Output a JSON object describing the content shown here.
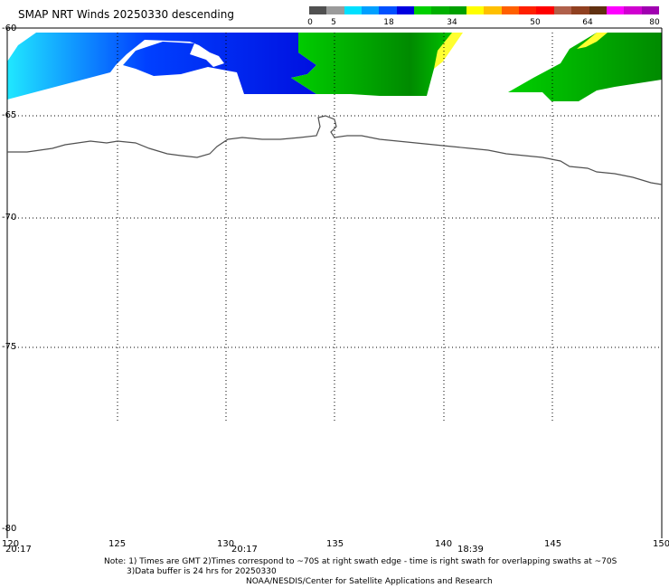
{
  "title": "SMAP NRT Winds  20250330 descending",
  "colorbar": {
    "labels": [
      "0",
      "5",
      "18",
      "34",
      "50",
      "64",
      "80"
    ],
    "colors": [
      "#505050",
      "#9a9a9a",
      "#00e0ff",
      "#00a0ff",
      "#0050ff",
      "#0000e0",
      "#00d000",
      "#00b000",
      "#00a000",
      "#ffff00",
      "#ffc000",
      "#ff6000",
      "#ff2000",
      "#ff0000",
      "#b0604a",
      "#904020",
      "#603010",
      "#ff00ff",
      "#d000d0",
      "#a000b0"
    ]
  },
  "map": {
    "lon_ticks": [
      "120",
      "125",
      "130",
      "135",
      "140",
      "145",
      "150"
    ],
    "lat_ticks": [
      "-60",
      "-65",
      "-70",
      "-75",
      "-80"
    ],
    "grid": true,
    "wind_colors": {
      "cyan": "#20e8ff",
      "blue": "#0040ff",
      "dark_blue": "#0010e0",
      "green": "#00d000",
      "dark_green": "#008a00",
      "yellow": "#ffff30"
    }
  },
  "times": [
    "20:17",
    "20:17",
    "18:39"
  ],
  "notes": {
    "line1": "Note: 1) Times are GMT 2)Times correspond to ~70S at right swath edge - time is right swath for overlapping swaths at ~70S",
    "line2": "3)Data buffer is 24 hrs for 20250330",
    "line3": "NOAA/NESDIS/Center for Satellite Applications and Research"
  }
}
